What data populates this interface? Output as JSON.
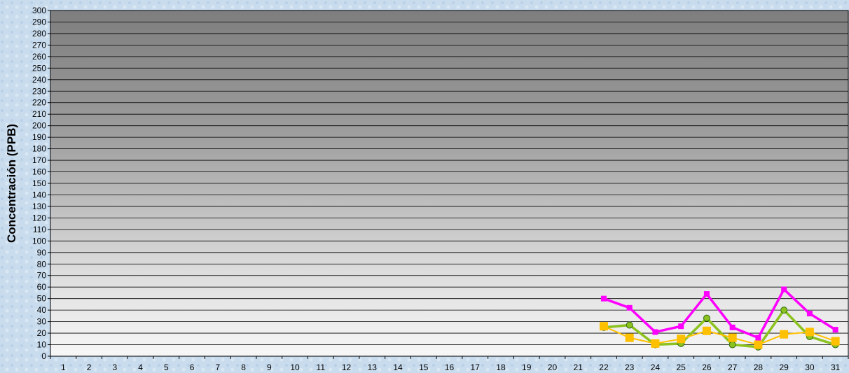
{
  "chart_data": {
    "type": "line",
    "title": "",
    "xlabel": "",
    "ylabel": "Concentración  (PPB)",
    "ylim": [
      0,
      300
    ],
    "ytick_step": 10,
    "grid": true,
    "categories": [
      "1",
      "2",
      "3",
      "4",
      "5",
      "6",
      "7",
      "8",
      "9",
      "10",
      "11",
      "12",
      "13",
      "14",
      "15",
      "16",
      "17",
      "18",
      "19",
      "20",
      "21",
      "22",
      "23",
      "24",
      "25",
      "26",
      "27",
      "28",
      "29",
      "30",
      "31"
    ],
    "series": [
      {
        "color": "#ff00ff",
        "marker": "square",
        "values": [
          null,
          null,
          null,
          null,
          null,
          null,
          null,
          null,
          null,
          null,
          null,
          null,
          null,
          null,
          null,
          null,
          null,
          null,
          null,
          null,
          null,
          50,
          42,
          21,
          26,
          54,
          25,
          16,
          58,
          37,
          23
        ]
      },
      {
        "color": "#8cc21e",
        "marker": "circle",
        "values": [
          null,
          null,
          null,
          null,
          null,
          null,
          null,
          null,
          null,
          null,
          null,
          null,
          null,
          null,
          null,
          null,
          null,
          null,
          null,
          null,
          null,
          25,
          27,
          10,
          11,
          33,
          10,
          8,
          40,
          17,
          10
        ]
      },
      {
        "color": "#ffc000",
        "marker": "square",
        "values": [
          null,
          null,
          null,
          null,
          null,
          null,
          null,
          null,
          null,
          null,
          null,
          null,
          null,
          null,
          null,
          null,
          null,
          null,
          null,
          null,
          null,
          26,
          16,
          11,
          15,
          22,
          16,
          10,
          19,
          21,
          13
        ]
      }
    ]
  }
}
